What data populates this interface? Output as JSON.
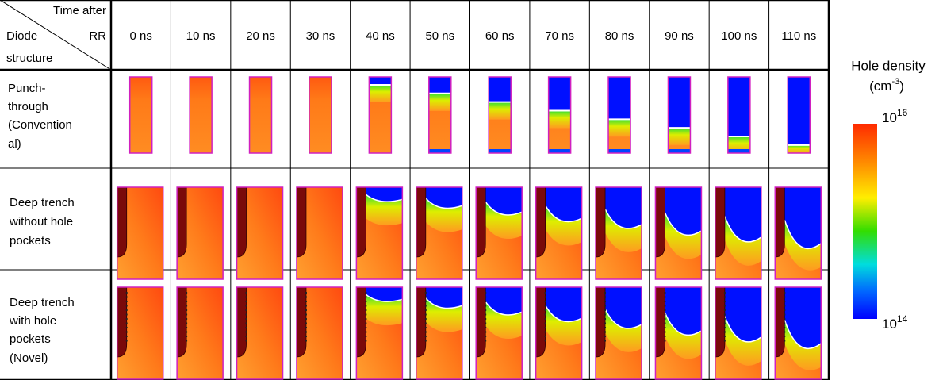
{
  "header": {
    "corner_top": "Time after",
    "corner_mid_left": "Diode",
    "corner_mid_right": "RR",
    "corner_bottom": "structure",
    "times": [
      "0 ns",
      "10 ns",
      "20 ns",
      "30 ns",
      "40 ns",
      "50 ns",
      "60 ns",
      "70 ns",
      "80 ns",
      "90 ns",
      "100 ns",
      "110 ns"
    ]
  },
  "rows": [
    {
      "label_lines": [
        "Punch-",
        "through",
        "(Convention",
        "al)"
      ]
    },
    {
      "label_lines": [
        "Deep trench",
        "without hole",
        "pockets"
      ]
    },
    {
      "label_lines": [
        "Deep trench",
        "with hole",
        "pockets",
        "(Novel)"
      ]
    }
  ],
  "legend": {
    "title": "Hole density",
    "unit": {
      "open": "(cm",
      "exp": "-3",
      "close": ")"
    },
    "max": {
      "base": "10",
      "exp": "16"
    },
    "min": {
      "base": "10",
      "exp": "14"
    }
  }
}
